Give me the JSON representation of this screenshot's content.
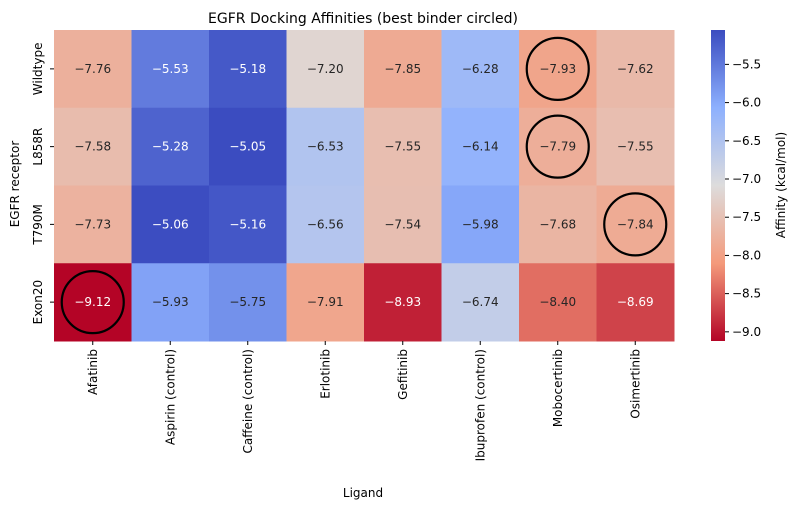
{
  "chart_data": {
    "type": "heatmap",
    "title": "EGFR Docking Affinities (best binder circled)",
    "xlabel": "Ligand",
    "ylabel": "EGFR receptor",
    "x": [
      "Afatinib",
      "Aspirin (control)",
      "Caffeine (control)",
      "Erlotinib",
      "Gefitinib",
      "Ibuprofen (control)",
      "Mobocertinib",
      "Osimertinib"
    ],
    "y": [
      "Wildtype",
      "L858R",
      "T790M",
      "Exon20"
    ],
    "values": [
      [
        -7.76,
        -5.53,
        -5.18,
        -7.2,
        -7.85,
        -6.28,
        -7.93,
        -7.62
      ],
      [
        -7.58,
        -5.28,
        -5.05,
        -6.53,
        -7.55,
        -6.14,
        -7.79,
        -7.55
      ],
      [
        -7.73,
        -5.06,
        -5.16,
        -6.56,
        -7.54,
        -5.98,
        -7.68,
        -7.84
      ],
      [
        -9.12,
        -5.93,
        -5.75,
        -7.91,
        -8.93,
        -6.74,
        -8.4,
        -8.69
      ]
    ],
    "best_binder_per_row": [
      6,
      6,
      7,
      0
    ],
    "colormap": "coolwarm_r",
    "vmin": -9.12,
    "vmax": -5.05,
    "colorbar": {
      "label": "Affinity (kcal/mol)",
      "ticks": [
        -5.5,
        -6.0,
        -6.5,
        -7.0,
        -7.5,
        -8.0,
        -8.5,
        -9.0
      ],
      "tick_labels": [
        "−5.5",
        "−6.0",
        "−6.5",
        "−7.0",
        "−7.5",
        "−8.0",
        "−8.5",
        "−9.0"
      ]
    }
  }
}
